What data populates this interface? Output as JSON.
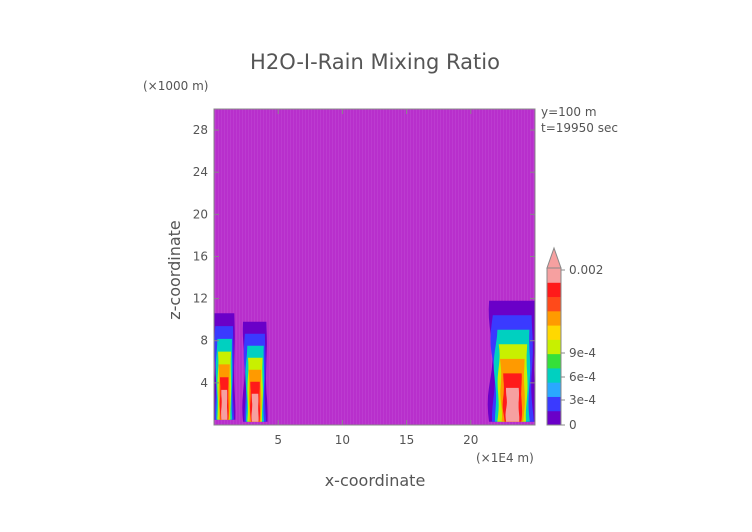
{
  "chart_data": {
    "type": "heatmap",
    "title": "H2O-I-Rain Mixing Ratio",
    "xlabel": "x-coordinate",
    "ylabel": "z-coordinate",
    "x_unit": "(×1E4 m)",
    "y_unit": "(×1000 m)",
    "xlim": [
      0,
      25
    ],
    "ylim": [
      0,
      30
    ],
    "x_ticks": [
      "5",
      "10",
      "15",
      "20"
    ],
    "y_ticks": [
      "4",
      "8",
      "12",
      "16",
      "20",
      "24",
      "28"
    ],
    "annotations": [
      "y=100 m",
      "t=19950 sec"
    ],
    "background_color": "#b82fcc",
    "colorbar": {
      "labels": [
        "0.002",
        "9e-4",
        "6e-4",
        "3e-4",
        "0"
      ],
      "colors": [
        "#6a00c8",
        "#3a3aff",
        "#2aa8ff",
        "#00d0c0",
        "#35e03a",
        "#c8f000",
        "#ffd800",
        "#ff9a00",
        "#ff4a1a",
        "#ff1a1a",
        "#f6a0a0"
      ],
      "extend": "max"
    },
    "regions": [
      {
        "name": "left-rain-core",
        "x": [
          0,
          1.6
        ],
        "z": [
          0.5,
          10.6
        ]
      },
      {
        "name": "left-rain-shaft",
        "x": [
          2.3,
          4.1
        ],
        "z": [
          0.3,
          9.8
        ]
      },
      {
        "name": "right-rain-core",
        "x": [
          21.5,
          25
        ],
        "z": [
          0.3,
          11.8
        ]
      }
    ]
  }
}
